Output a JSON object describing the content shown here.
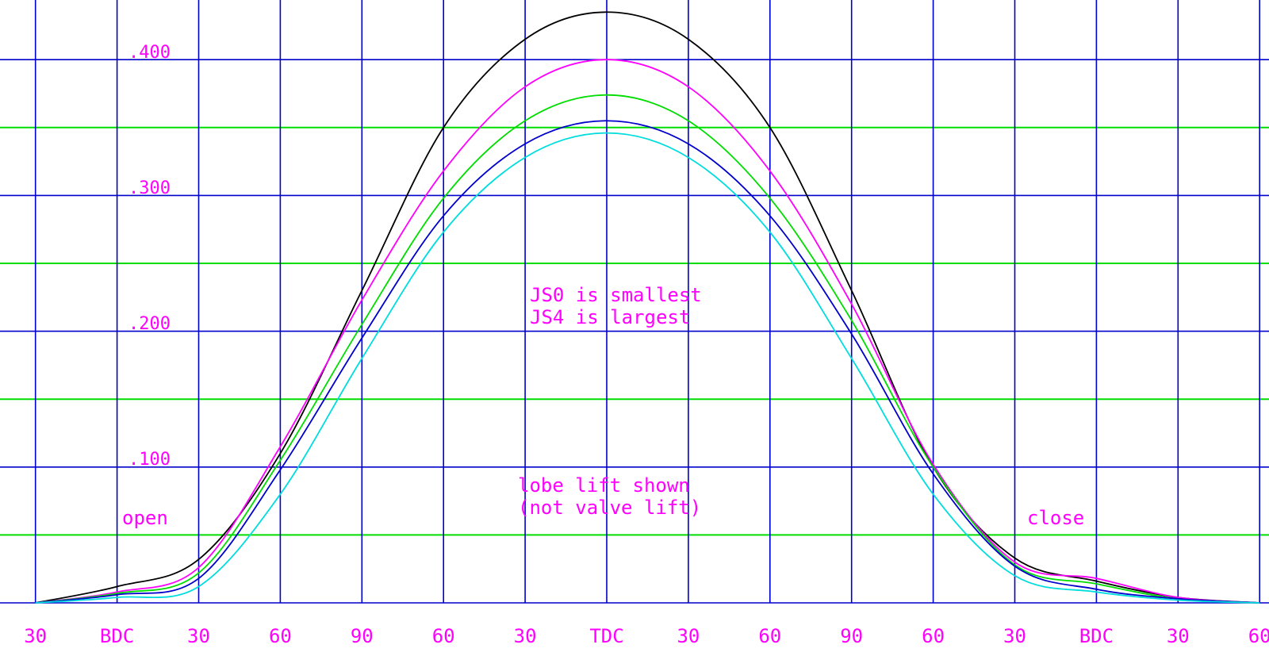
{
  "chart_data": {
    "type": "line",
    "title": "",
    "xlabel": "",
    "ylabel": "",
    "x_unit": "crank degrees",
    "xlim": [
      -330,
      330
    ],
    "ylim": [
      0,
      0.44
    ],
    "grid": true,
    "x_tick_labels": [
      {
        "x": -330,
        "label": "30"
      },
      {
        "x": -300,
        "label": "BDC"
      },
      {
        "x": -270,
        "label": "30"
      },
      {
        "x": -240,
        "label": "60"
      },
      {
        "x": -210,
        "label": "90"
      },
      {
        "x": -180,
        "label": "60"
      },
      {
        "x": -150,
        "label": "30"
      },
      {
        "x": -120,
        "label": "TDC"
      },
      {
        "x": -90,
        "label": "30"
      },
      {
        "x": -60,
        "label": "60"
      },
      {
        "x": -30,
        "label": "90"
      },
      {
        "x": 0,
        "label": "60"
      },
      {
        "x": 30,
        "label": "30"
      },
      {
        "x": 60,
        "label": "BDC"
      },
      {
        "x": 90,
        "label": "30"
      },
      {
        "x": 120,
        "label": "60"
      }
    ],
    "y_tick_labels": [
      {
        "y": 0.1,
        "label": ".100"
      },
      {
        "y": 0.2,
        "label": ".200"
      },
      {
        "y": 0.3,
        "label": ".300"
      },
      {
        "y": 0.4,
        "label": ".400"
      }
    ],
    "annotations": {
      "open": "open",
      "close": "close",
      "js_note_1": "JS0 is smallest",
      "js_note_2": "JS4 is largest",
      "lift_note_1": "lobe lift shown",
      "lift_note_2": "(not valve lift)"
    },
    "series": [
      {
        "color": "#000000",
        "x": [
          -330,
          -300,
          -270,
          -240,
          -210,
          -180,
          -150,
          -120,
          -90,
          -60,
          -30,
          0,
          30,
          60,
          90,
          120
        ],
        "y": [
          0.0,
          0.012,
          0.032,
          0.11,
          0.23,
          0.35,
          0.415,
          0.435,
          0.415,
          0.35,
          0.23,
          0.1,
          0.033,
          0.016,
          0.004,
          0.0
        ]
      },
      {
        "color": "#ff00ff",
        "x": [
          -330,
          -300,
          -270,
          -240,
          -210,
          -180,
          -150,
          -120,
          -90,
          -60,
          -30,
          0,
          30,
          60,
          90,
          120
        ],
        "y": [
          0.0,
          0.008,
          0.026,
          0.115,
          0.223,
          0.318,
          0.38,
          0.4,
          0.38,
          0.318,
          0.22,
          0.102,
          0.03,
          0.018,
          0.004,
          0.0
        ]
      },
      {
        "color": "#00dd00",
        "x": [
          -330,
          -300,
          -270,
          -240,
          -210,
          -180,
          -150,
          -120,
          -90,
          -60,
          -30,
          0,
          30,
          60,
          90,
          120
        ],
        "y": [
          0.0,
          0.007,
          0.022,
          0.105,
          0.205,
          0.298,
          0.355,
          0.374,
          0.355,
          0.298,
          0.208,
          0.1,
          0.028,
          0.014,
          0.003,
          0.0
        ]
      },
      {
        "color": "#0000cc",
        "x": [
          -330,
          -300,
          -270,
          -240,
          -210,
          -180,
          -150,
          -120,
          -90,
          -60,
          -30,
          0,
          30,
          60,
          90,
          120
        ],
        "y": [
          0.0,
          0.006,
          0.018,
          0.098,
          0.195,
          0.285,
          0.338,
          0.355,
          0.338,
          0.285,
          0.198,
          0.095,
          0.027,
          0.01,
          0.003,
          0.0
        ]
      },
      {
        "color": "#00dddd",
        "x": [
          -330,
          -300,
          -270,
          -240,
          -210,
          -180,
          -150,
          -120,
          -90,
          -60,
          -30,
          0,
          30,
          60,
          90,
          120
        ],
        "y": [
          0.0,
          0.004,
          0.012,
          0.08,
          0.18,
          0.273,
          0.328,
          0.346,
          0.328,
          0.273,
          0.18,
          0.08,
          0.02,
          0.008,
          0.002,
          0.0
        ]
      }
    ],
    "grid_colors": {
      "major": "#0000cc",
      "minor": "#00dd00"
    }
  }
}
